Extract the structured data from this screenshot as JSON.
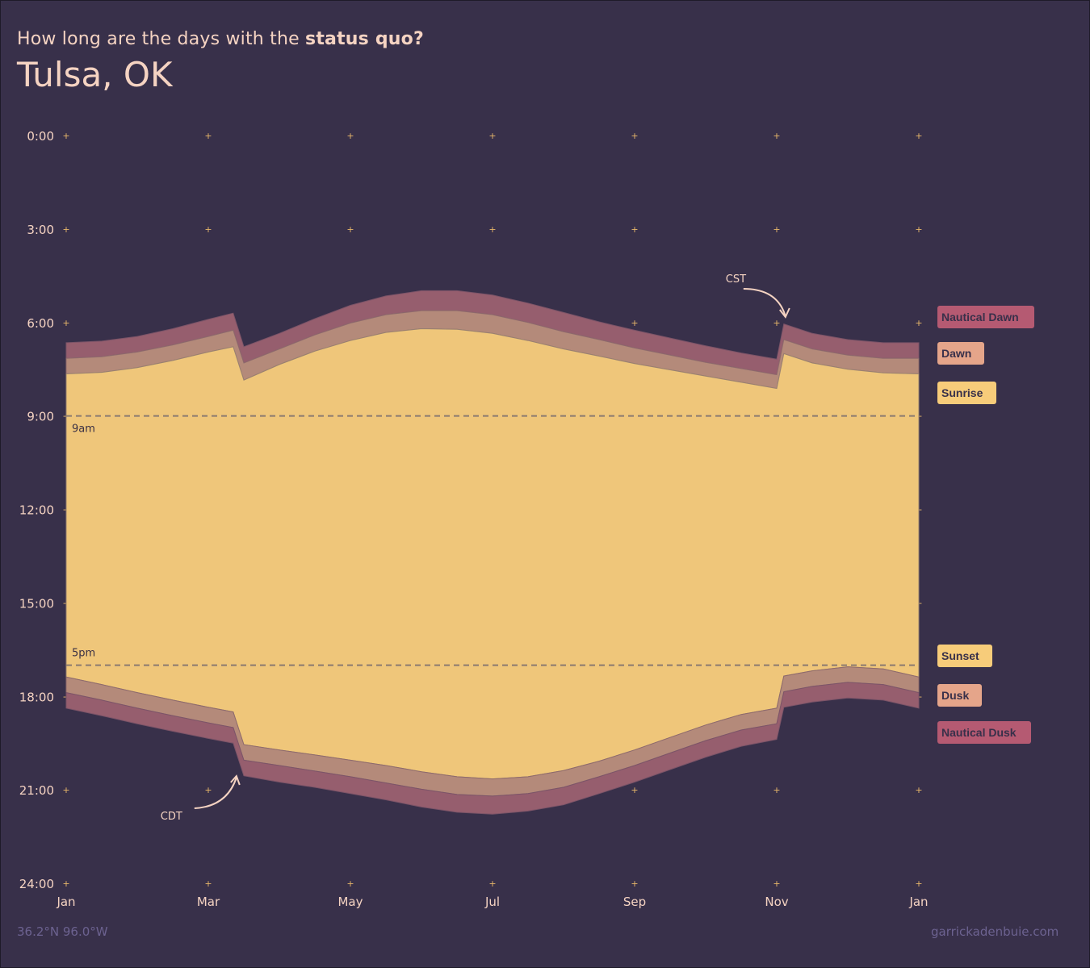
{
  "header": {
    "subtitle_prefix": "How long are the days with the ",
    "subtitle_emphasis": "status quo?",
    "title": "Tulsa, OK"
  },
  "footer": {
    "coords": "36.2°N 96.0°W",
    "credit": "garrickadenbuie.com"
  },
  "colors": {
    "background": "#38304a",
    "daylight": "#efc67a",
    "civil": "#b48a7a",
    "nautical": "#965e6e",
    "text": "#f5d3c2",
    "legend_sunrise": "#f7cc7a",
    "legend_dawn": "#e5a58a",
    "legend_nautical": "#b55a72"
  },
  "chart_data": {
    "type": "area",
    "xlabel": "",
    "ylabel": "",
    "x_tick_labels": [
      "Jan",
      "Mar",
      "May",
      "Jul",
      "Sep",
      "Nov",
      "Jan"
    ],
    "x_tick_months": [
      0,
      2,
      4,
      6,
      8,
      10,
      12
    ],
    "y_tick_labels": [
      "0:00",
      "3:00",
      "6:00",
      "9:00",
      "12:00",
      "15:00",
      "18:00",
      "21:00",
      "24:00"
    ],
    "ylim": [
      0,
      24
    ],
    "y_inverted": true,
    "xlim_months": [
      0,
      12
    ],
    "dst_start_month": 2.35,
    "dst_end_month": 10.1,
    "x": [
      0,
      0.5,
      1,
      1.5,
      2,
      2.35,
      2.5,
      3,
      3.5,
      4,
      4.5,
      5,
      5.5,
      6,
      6.5,
      7,
      7.5,
      8,
      8.5,
      9,
      9.5,
      10,
      10.1,
      10.5,
      11,
      11.5,
      12
    ],
    "series": [
      {
        "name": "Nautical Dawn",
        "values": [
          6.65,
          6.6,
          6.45,
          6.2,
          5.9,
          5.7,
          6.78,
          6.35,
          5.88,
          5.45,
          5.15,
          4.98,
          4.98,
          5.12,
          5.38,
          5.68,
          5.98,
          6.25,
          6.5,
          6.75,
          6.98,
          7.18,
          6.05,
          6.35,
          6.55,
          6.65,
          6.65
        ]
      },
      {
        "name": "Dawn",
        "values": [
          7.15,
          7.1,
          6.95,
          6.72,
          6.45,
          6.25,
          7.3,
          6.85,
          6.4,
          6.02,
          5.75,
          5.62,
          5.62,
          5.75,
          6.0,
          6.3,
          6.55,
          6.82,
          7.05,
          7.28,
          7.48,
          7.68,
          6.55,
          6.85,
          7.05,
          7.15,
          7.15
        ]
      },
      {
        "name": "Sunrise",
        "values": [
          7.65,
          7.6,
          7.45,
          7.22,
          6.95,
          6.78,
          7.85,
          7.35,
          6.92,
          6.58,
          6.32,
          6.2,
          6.22,
          6.35,
          6.58,
          6.85,
          7.08,
          7.32,
          7.52,
          7.72,
          7.92,
          8.12,
          7.0,
          7.3,
          7.5,
          7.62,
          7.65
        ]
      },
      {
        "name": "Sunset",
        "values": [
          17.38,
          17.62,
          17.88,
          18.12,
          18.35,
          18.5,
          19.55,
          19.72,
          19.88,
          20.05,
          20.22,
          20.42,
          20.58,
          20.65,
          20.58,
          20.38,
          20.08,
          19.72,
          19.32,
          18.92,
          18.58,
          18.38,
          17.35,
          17.18,
          17.05,
          17.12,
          17.38
        ]
      },
      {
        "name": "Dusk",
        "values": [
          17.88,
          18.12,
          18.38,
          18.62,
          18.85,
          19.0,
          20.05,
          20.22,
          20.4,
          20.58,
          20.78,
          20.98,
          21.15,
          21.2,
          21.12,
          20.92,
          20.58,
          20.22,
          19.82,
          19.42,
          19.08,
          18.88,
          17.85,
          17.68,
          17.55,
          17.62,
          17.88
        ]
      },
      {
        "name": "Nautical Dusk",
        "values": [
          18.38,
          18.62,
          18.88,
          19.12,
          19.35,
          19.5,
          20.55,
          20.75,
          20.92,
          21.12,
          21.32,
          21.55,
          21.72,
          21.78,
          21.68,
          21.48,
          21.12,
          20.75,
          20.35,
          19.95,
          19.6,
          19.38,
          18.35,
          18.18,
          18.05,
          18.12,
          18.38
        ]
      }
    ],
    "reference_lines": [
      {
        "label": "9am",
        "hour": 9
      },
      {
        "label": "5pm",
        "hour": 17
      }
    ],
    "annotations": [
      {
        "label": "CST",
        "month": 10.1,
        "hour": 5.0
      },
      {
        "label": "CDT",
        "month": 2.35,
        "hour": 21.0
      }
    ],
    "legend": {
      "placement": "right",
      "items": [
        {
          "label": "Nautical Dawn",
          "color": "#b55a72"
        },
        {
          "label": "Dawn",
          "color": "#e5a58a"
        },
        {
          "label": "Sunrise",
          "color": "#f7cc7a"
        },
        {
          "label": "Sunset",
          "color": "#f7cc7a"
        },
        {
          "label": "Dusk",
          "color": "#e5a58a"
        },
        {
          "label": "Nautical Dusk",
          "color": "#b55a72"
        }
      ]
    },
    "grid": "plus markers"
  }
}
